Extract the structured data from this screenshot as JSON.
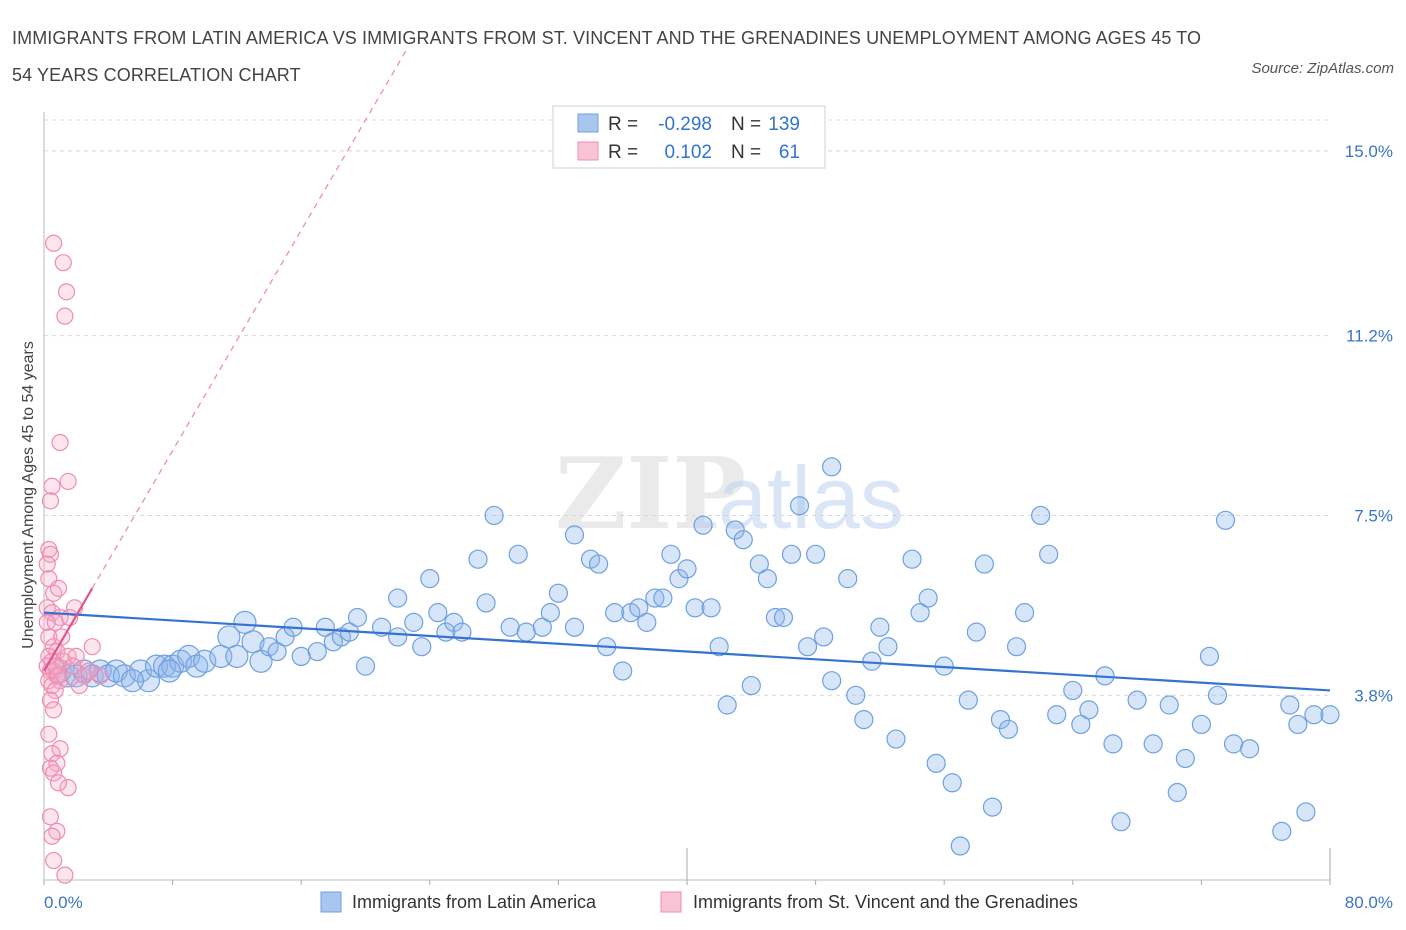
{
  "title": "IMMIGRANTS FROM LATIN AMERICA VS IMMIGRANTS FROM ST. VINCENT AND THE GRENADINES UNEMPLOYMENT AMONG AGES 45 TO 54 YEARS CORRELATION CHART",
  "source": "Source: ZipAtlas.com",
  "watermark": {
    "zip": "ZIP",
    "atlas": "atlas"
  },
  "colors": {
    "blue": "#6fa0e0",
    "blue_line": "#3474d0",
    "pink": "#f08cb0",
    "pink_line": "#e05590",
    "grid": "#d8d8d8",
    "tick_text": "#3b74c7"
  },
  "chart_data": {
    "type": "scatter",
    "ylabel": "Unemployment Among Ages 45 to 54 years",
    "xlim": [
      0,
      80
    ],
    "ylim": [
      0,
      15.8
    ],
    "x_tick_labels": [
      {
        "value": 0,
        "label": "0.0%"
      },
      {
        "value": 80,
        "label": "80.0%"
      }
    ],
    "y_ticks": [
      {
        "value": 3.8,
        "label": "3.8%"
      },
      {
        "value": 7.5,
        "label": "7.5%"
      },
      {
        "value": 11.2,
        "label": "11.2%"
      },
      {
        "value": 15.0,
        "label": "15.0%"
      }
    ],
    "grid": "horizontal dashed",
    "legend_position": "bottom",
    "stats": [
      {
        "r_label": "R =",
        "r_value": "-0.298",
        "n_label": "N =",
        "n_value": "139"
      },
      {
        "r_label": "R =",
        "r_value": "0.102",
        "n_label": "N =",
        "n_value": "61"
      }
    ],
    "series": [
      {
        "name": "Immigrants from Latin America",
        "color": "#6fa0e0",
        "trend": {
          "x": [
            0,
            80
          ],
          "y": [
            5.5,
            3.9
          ]
        },
        "points": [
          [
            1.0,
            4.3
          ],
          [
            1.5,
            4.2
          ],
          [
            2.0,
            4.2
          ],
          [
            2.5,
            4.3
          ],
          [
            3.0,
            4.2
          ],
          [
            3.5,
            4.3
          ],
          [
            4.0,
            4.2
          ],
          [
            4.5,
            4.3
          ],
          [
            5.0,
            4.2
          ],
          [
            6.0,
            4.3
          ],
          [
            6.5,
            4.1
          ],
          [
            7.0,
            4.4
          ],
          [
            7.5,
            4.4
          ],
          [
            8.0,
            4.4
          ],
          [
            8.5,
            4.5
          ],
          [
            9.0,
            4.6
          ],
          [
            9.5,
            4.4
          ],
          [
            10,
            4.5
          ],
          [
            11,
            4.6
          ],
          [
            11.5,
            5.0
          ],
          [
            12,
            4.6
          ],
          [
            12.5,
            5.3
          ],
          [
            13,
            4.9
          ],
          [
            13.5,
            4.5
          ],
          [
            14,
            4.8
          ],
          [
            14.5,
            4.7
          ],
          [
            15,
            5.0
          ],
          [
            15.5,
            5.2
          ],
          [
            16,
            4.6
          ],
          [
            17,
            4.7
          ],
          [
            17.5,
            5.2
          ],
          [
            18,
            4.9
          ],
          [
            18.5,
            5.0
          ],
          [
            19,
            5.1
          ],
          [
            19.5,
            5.4
          ],
          [
            20,
            4.4
          ],
          [
            21,
            5.2
          ],
          [
            22,
            5.8
          ],
          [
            22,
            5.0
          ],
          [
            23,
            5.3
          ],
          [
            23.5,
            4.8
          ],
          [
            24,
            6.2
          ],
          [
            24.5,
            5.5
          ],
          [
            25,
            5.1
          ],
          [
            25.5,
            5.3
          ],
          [
            26,
            5.1
          ],
          [
            27,
            6.6
          ],
          [
            27.5,
            5.7
          ],
          [
            28,
            7.5
          ],
          [
            29,
            5.2
          ],
          [
            29.5,
            6.7
          ],
          [
            30,
            5.1
          ],
          [
            31,
            5.2
          ],
          [
            31.5,
            5.5
          ],
          [
            32,
            5.9
          ],
          [
            33,
            7.1
          ],
          [
            33,
            5.2
          ],
          [
            34,
            6.6
          ],
          [
            34.5,
            6.5
          ],
          [
            35,
            4.8
          ],
          [
            35.5,
            5.5
          ],
          [
            36,
            4.3
          ],
          [
            36.5,
            5.5
          ],
          [
            37,
            5.6
          ],
          [
            37.5,
            5.3
          ],
          [
            38,
            5.8
          ],
          [
            38.5,
            5.8
          ],
          [
            39,
            6.7
          ],
          [
            39.5,
            6.2
          ],
          [
            40,
            6.4
          ],
          [
            40.5,
            5.6
          ],
          [
            41,
            7.3
          ],
          [
            41.5,
            5.6
          ],
          [
            42,
            4.8
          ],
          [
            42.5,
            3.6
          ],
          [
            43,
            7.2
          ],
          [
            43.5,
            7.0
          ],
          [
            44,
            4.0
          ],
          [
            44.5,
            6.5
          ],
          [
            45,
            6.2
          ],
          [
            45.5,
            5.4
          ],
          [
            46,
            5.4
          ],
          [
            46.5,
            6.7
          ],
          [
            47,
            7.7
          ],
          [
            47.5,
            4.8
          ],
          [
            48,
            6.7
          ],
          [
            48.5,
            5.0
          ],
          [
            49,
            8.5
          ],
          [
            49,
            4.1
          ],
          [
            50,
            6.2
          ],
          [
            50.5,
            3.8
          ],
          [
            51,
            3.3
          ],
          [
            51.5,
            4.5
          ],
          [
            52,
            5.2
          ],
          [
            52.5,
            4.8
          ],
          [
            53,
            2.9
          ],
          [
            54,
            6.6
          ],
          [
            54.5,
            5.5
          ],
          [
            55,
            5.8
          ],
          [
            55.5,
            2.4
          ],
          [
            56,
            4.4
          ],
          [
            56.5,
            2.0
          ],
          [
            57,
            0.7
          ],
          [
            57.5,
            3.7
          ],
          [
            58,
            5.1
          ],
          [
            58.5,
            6.5
          ],
          [
            59,
            1.5
          ],
          [
            59.5,
            3.3
          ],
          [
            60,
            3.1
          ],
          [
            60.5,
            4.8
          ],
          [
            61,
            5.5
          ],
          [
            62,
            7.5
          ],
          [
            62.5,
            6.7
          ],
          [
            63,
            3.4
          ],
          [
            64,
            3.9
          ],
          [
            64.5,
            3.2
          ],
          [
            65,
            3.5
          ],
          [
            66,
            4.2
          ],
          [
            66.5,
            2.8
          ],
          [
            67,
            1.2
          ],
          [
            68,
            3.7
          ],
          [
            69,
            2.8
          ],
          [
            70,
            3.6
          ],
          [
            70.5,
            1.8
          ],
          [
            71,
            2.5
          ],
          [
            72,
            3.2
          ],
          [
            72.5,
            4.6
          ],
          [
            73,
            3.8
          ],
          [
            74,
            2.8
          ],
          [
            75,
            2.7
          ],
          [
            77,
            1.0
          ],
          [
            77.5,
            3.6
          ],
          [
            78,
            3.2
          ],
          [
            78.5,
            1.4
          ],
          [
            79,
            3.4
          ],
          [
            80,
            3.4
          ],
          [
            5.5,
            4.1
          ],
          [
            73.5,
            7.4
          ],
          [
            7.8,
            4.3
          ]
        ]
      },
      {
        "name": "Immigrants from St. Vincent and the Grenadines",
        "color": "#f08cb0",
        "trend": {
          "x": [
            0,
            3
          ],
          "y": [
            4.3,
            6.0
          ]
        },
        "points": [
          [
            0.6,
            13.1
          ],
          [
            1.2,
            12.7
          ],
          [
            1.4,
            12.1
          ],
          [
            1.3,
            11.6
          ],
          [
            1.0,
            9.0
          ],
          [
            1.5,
            8.2
          ],
          [
            0.5,
            8.1
          ],
          [
            0.4,
            7.8
          ],
          [
            0.3,
            6.8
          ],
          [
            0.4,
            6.7
          ],
          [
            0.3,
            6.2
          ],
          [
            0.6,
            5.9
          ],
          [
            0.2,
            5.6
          ],
          [
            0.5,
            5.5
          ],
          [
            1.0,
            5.4
          ],
          [
            0.2,
            5.3
          ],
          [
            0.7,
            5.3
          ],
          [
            0.3,
            5.0
          ],
          [
            0.6,
            4.8
          ],
          [
            0.8,
            4.7
          ],
          [
            0.3,
            4.6
          ],
          [
            0.5,
            4.5
          ],
          [
            0.2,
            4.4
          ],
          [
            0.4,
            4.3
          ],
          [
            0.6,
            4.3
          ],
          [
            0.8,
            4.2
          ],
          [
            1.0,
            4.1
          ],
          [
            0.3,
            4.1
          ],
          [
            0.5,
            4.0
          ],
          [
            0.7,
            3.9
          ],
          [
            0.9,
            4.2
          ],
          [
            1.2,
            4.5
          ],
          [
            1.5,
            4.6
          ],
          [
            0.4,
            3.7
          ],
          [
            0.6,
            3.5
          ],
          [
            0.3,
            3.0
          ],
          [
            1.0,
            2.7
          ],
          [
            0.5,
            2.6
          ],
          [
            0.8,
            2.4
          ],
          [
            0.4,
            2.3
          ],
          [
            0.6,
            2.2
          ],
          [
            1.5,
            1.9
          ],
          [
            0.9,
            2.0
          ],
          [
            0.4,
            1.3
          ],
          [
            0.8,
            1.0
          ],
          [
            0.5,
            0.9
          ],
          [
            0.6,
            0.4
          ],
          [
            1.3,
            0.1
          ],
          [
            2.0,
            4.6
          ],
          [
            1.8,
            4.4
          ],
          [
            2.5,
            4.2
          ],
          [
            3.5,
            4.2
          ],
          [
            1.1,
            5.0
          ],
          [
            0.2,
            6.5
          ],
          [
            0.9,
            6.0
          ],
          [
            1.6,
            5.4
          ],
          [
            2.2,
            4.0
          ],
          [
            3.0,
            4.8
          ],
          [
            0.7,
            4.4
          ],
          [
            1.9,
            5.6
          ],
          [
            2.8,
            4.3
          ]
        ]
      }
    ]
  },
  "legend": {
    "items": [
      {
        "label": "Immigrants from Latin America",
        "color": "#a8c6ee",
        "border": "#6fa0e0"
      },
      {
        "label": "Immigrants from St. Vincent and the Grenadines",
        "color": "#f7c4d6",
        "border": "#f08cb0"
      }
    ]
  }
}
